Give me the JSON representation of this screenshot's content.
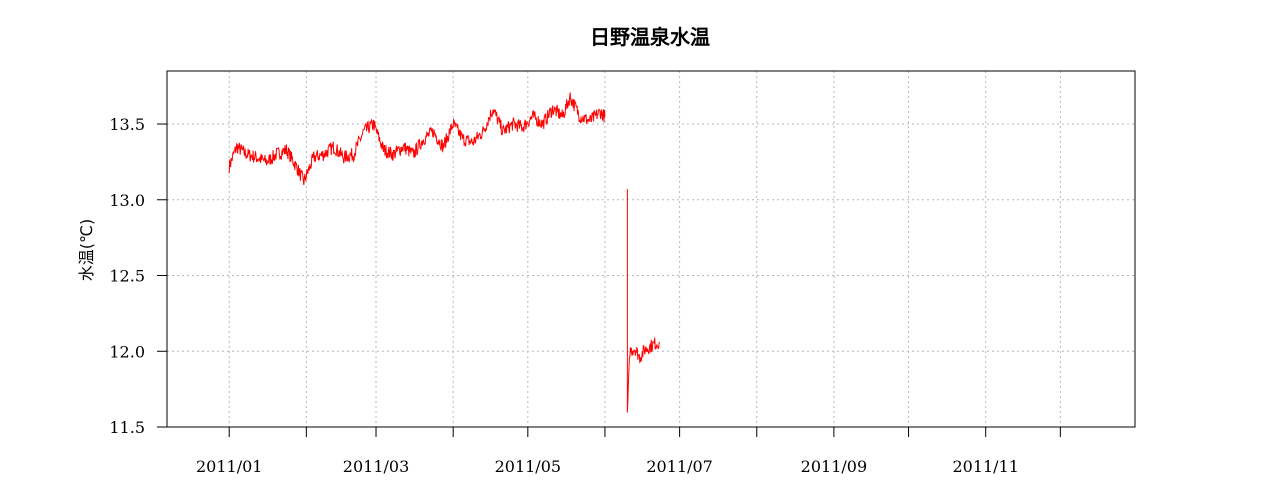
{
  "chart_data": {
    "type": "line",
    "title": "日野温泉水温",
    "xlabel": "",
    "ylabel": "水温(℃)",
    "xlim": [
      "2010-12-07",
      "2011-12-31"
    ],
    "ylim": [
      11.5,
      13.85
    ],
    "y_ticks": [
      11.5,
      12.0,
      12.5,
      13.0,
      13.5
    ],
    "y_tick_labels": [
      "11.5",
      "12.0",
      "12.5",
      "13.0",
      "13.5"
    ],
    "x_ticks": [
      "2011-01-01",
      "2011-02-01",
      "2011-03-01",
      "2011-04-01",
      "2011-05-01",
      "2011-06-01",
      "2011-07-01",
      "2011-08-01",
      "2011-09-01",
      "2011-10-01",
      "2011-11-01",
      "2011-12-01"
    ],
    "x_tick_labels": [
      {
        "date": "2011-01-01",
        "label": "2011/01"
      },
      {
        "date": "2011-03-01",
        "label": "2011/03"
      },
      {
        "date": "2011-05-01",
        "label": "2011/05"
      },
      {
        "date": "2011-07-01",
        "label": "2011/07"
      },
      {
        "date": "2011-09-01",
        "label": "2011/09"
      },
      {
        "date": "2011-11-01",
        "label": "2011/11"
      }
    ],
    "grid": true,
    "series": [
      {
        "color": "#ff0000",
        "segments": [
          [
            [
              "2011-01-01",
              13.22
            ],
            [
              "2011-01-04",
              13.35
            ],
            [
              "2011-01-08",
              13.3
            ],
            [
              "2011-01-12",
              13.28
            ],
            [
              "2011-01-16",
              13.25
            ],
            [
              "2011-01-20",
              13.3
            ],
            [
              "2011-01-24",
              13.33
            ],
            [
              "2011-01-28",
              13.22
            ],
            [
              "2011-01-31",
              13.12
            ],
            [
              "2011-02-04",
              13.28
            ],
            [
              "2011-02-08",
              13.3
            ],
            [
              "2011-02-12",
              13.35
            ],
            [
              "2011-02-16",
              13.28
            ],
            [
              "2011-02-20",
              13.3
            ],
            [
              "2011-02-24",
              13.45
            ],
            [
              "2011-02-28",
              13.5
            ],
            [
              "2011-03-04",
              13.33
            ],
            [
              "2011-03-08",
              13.3
            ],
            [
              "2011-03-12",
              13.35
            ],
            [
              "2011-03-16",
              13.3
            ],
            [
              "2011-03-20",
              13.4
            ],
            [
              "2011-03-24",
              13.45
            ],
            [
              "2011-03-28",
              13.35
            ],
            [
              "2011-04-01",
              13.5
            ],
            [
              "2011-04-05",
              13.4
            ],
            [
              "2011-04-09",
              13.38
            ],
            [
              "2011-04-13",
              13.45
            ],
            [
              "2011-04-17",
              13.6
            ],
            [
              "2011-04-21",
              13.45
            ],
            [
              "2011-04-25",
              13.5
            ],
            [
              "2011-04-29",
              13.48
            ],
            [
              "2011-05-03",
              13.55
            ],
            [
              "2011-05-07",
              13.5
            ],
            [
              "2011-05-11",
              13.6
            ],
            [
              "2011-05-15",
              13.55
            ],
            [
              "2011-05-18",
              13.68
            ],
            [
              "2011-05-22",
              13.55
            ],
            [
              "2011-05-26",
              13.52
            ],
            [
              "2011-05-30",
              13.58
            ],
            [
              "2011-06-01",
              13.55
            ]
          ],
          [
            [
              "2011-06-10",
              13.07
            ],
            [
              "2011-06-10",
              11.58
            ],
            [
              "2011-06-11",
              12.0
            ],
            [
              "2011-06-13",
              12.02
            ],
            [
              "2011-06-15",
              11.96
            ],
            [
              "2011-06-17",
              12.01
            ],
            [
              "2011-06-19",
              12.03
            ],
            [
              "2011-06-21",
              12.05
            ],
            [
              "2011-06-23",
              12.06
            ]
          ]
        ]
      }
    ]
  }
}
